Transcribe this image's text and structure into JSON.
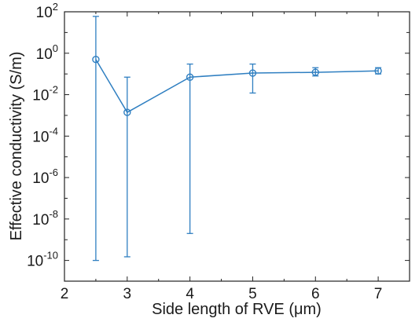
{
  "chart_data": {
    "type": "line",
    "xlabel": "Side length of RVE (μm)",
    "ylabel": "Effective conductivity (S/m)",
    "xlim": [
      2,
      7.5
    ],
    "ylim_log10": [
      -11,
      2
    ],
    "y_scale": "log",
    "grid": false,
    "x_ticks": [
      "2",
      "3",
      "4",
      "5",
      "6",
      "7"
    ],
    "y_ticks": [
      {
        "base": "10",
        "exp": "2"
      },
      {
        "base": "10",
        "exp": "0"
      },
      {
        "base": "10",
        "exp": "-2"
      },
      {
        "base": "10",
        "exp": "-4"
      },
      {
        "base": "10",
        "exp": "-6"
      },
      {
        "base": "10",
        "exp": "-8"
      },
      {
        "base": "10",
        "exp": "-10"
      }
    ],
    "series": [
      {
        "color": "#2f7fc1",
        "marker": "circle",
        "x": [
          2.5,
          3,
          4,
          5,
          6,
          7
        ],
        "y": [
          0.5,
          0.0014,
          0.07,
          0.11,
          0.12,
          0.14
        ],
        "err_low": [
          1e-10,
          1.5e-10,
          2e-09,
          0.012,
          0.08,
          0.1
        ],
        "err_high": [
          60,
          0.07,
          0.3,
          0.3,
          0.2,
          0.2
        ]
      }
    ]
  }
}
